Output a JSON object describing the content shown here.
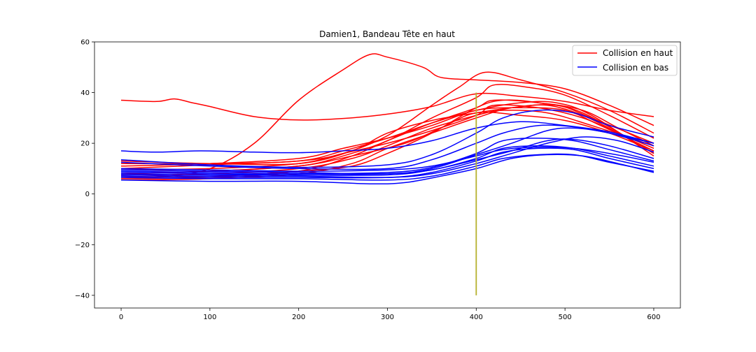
{
  "chart_data": {
    "type": "line",
    "title": "Damien1, Bandeau Tête en haut",
    "xlabel": "",
    "ylabel": "",
    "xlim": [
      -30,
      630
    ],
    "ylim": [
      -45,
      60
    ],
    "x_ticks": [
      0,
      100,
      200,
      300,
      400,
      500,
      600
    ],
    "y_ticks": [
      -40,
      -20,
      0,
      20,
      40,
      60
    ],
    "legend_position": "top-right",
    "grid": false,
    "colors": {
      "red": "#ff0000",
      "blue": "#0000ff",
      "marker": "#b5b02d"
    },
    "legend": [
      {
        "label": "Collision en haut",
        "color": "#ff0000"
      },
      {
        "label": "Collision en bas",
        "color": "#0000ff"
      }
    ],
    "vertical_marker": {
      "x": 400,
      "y_from": -40,
      "y_to": 40,
      "color": "#b5b02d"
    },
    "series": [
      {
        "group": "haut",
        "color": "#ff0000",
        "points": [
          [
            0,
            37
          ],
          [
            40,
            36.5
          ],
          [
            60,
            37.5
          ],
          [
            80,
            36
          ],
          [
            100,
            34.5
          ],
          [
            150,
            30.5
          ],
          [
            200,
            29.2
          ],
          [
            250,
            29.8
          ],
          [
            300,
            31.5
          ],
          [
            350,
            34.5
          ],
          [
            400,
            39.5
          ],
          [
            450,
            38.5
          ],
          [
            500,
            36.5
          ],
          [
            550,
            33
          ],
          [
            600,
            30.5
          ]
        ]
      },
      {
        "group": "haut",
        "color": "#ff0000",
        "points": [
          [
            0,
            7
          ],
          [
            50,
            7
          ],
          [
            100,
            10
          ],
          [
            150,
            20
          ],
          [
            200,
            37
          ],
          [
            250,
            49
          ],
          [
            280,
            55
          ],
          [
            300,
            54
          ],
          [
            340,
            50
          ],
          [
            360,
            46
          ],
          [
            400,
            45
          ],
          [
            450,
            44
          ],
          [
            500,
            41.5
          ],
          [
            550,
            35
          ],
          [
            600,
            27
          ]
        ]
      },
      {
        "group": "haut",
        "color": "#ff0000",
        "points": [
          [
            0,
            10
          ],
          [
            100,
            11.5
          ],
          [
            200,
            13
          ],
          [
            250,
            16
          ],
          [
            300,
            23
          ],
          [
            350,
            35
          ],
          [
            380,
            42
          ],
          [
            410,
            48
          ],
          [
            450,
            45
          ],
          [
            500,
            40
          ],
          [
            550,
            33
          ],
          [
            600,
            24
          ]
        ]
      },
      {
        "group": "haut",
        "color": "#ff0000",
        "points": [
          [
            0,
            8
          ],
          [
            100,
            9
          ],
          [
            200,
            11
          ],
          [
            250,
            15
          ],
          [
            300,
            21
          ],
          [
            350,
            30
          ],
          [
            400,
            38
          ],
          [
            420,
            43
          ],
          [
            460,
            42
          ],
          [
            500,
            39
          ],
          [
            550,
            31
          ],
          [
            600,
            22
          ]
        ]
      },
      {
        "group": "haut",
        "color": "#ff0000",
        "points": [
          [
            0,
            6
          ],
          [
            100,
            6.5
          ],
          [
            200,
            9
          ],
          [
            260,
            15
          ],
          [
            300,
            21
          ],
          [
            350,
            28
          ],
          [
            400,
            34
          ],
          [
            420,
            37
          ],
          [
            470,
            36
          ],
          [
            520,
            33
          ],
          [
            560,
            26
          ],
          [
            600,
            19
          ]
        ]
      },
      {
        "group": "haut",
        "color": "#ff0000",
        "points": [
          [
            0,
            13
          ],
          [
            100,
            12
          ],
          [
            200,
            12
          ],
          [
            260,
            17
          ],
          [
            300,
            24
          ],
          [
            350,
            29
          ],
          [
            400,
            32
          ],
          [
            440,
            34
          ],
          [
            480,
            35
          ],
          [
            520,
            31
          ],
          [
            560,
            24
          ],
          [
            600,
            16
          ]
        ]
      },
      {
        "group": "haut",
        "color": "#ff0000",
        "points": [
          [
            0,
            11
          ],
          [
            100,
            12
          ],
          [
            200,
            14
          ],
          [
            250,
            18
          ],
          [
            300,
            22
          ],
          [
            350,
            27
          ],
          [
            400,
            33
          ],
          [
            450,
            34
          ],
          [
            500,
            33
          ],
          [
            540,
            27
          ],
          [
            600,
            17
          ]
        ]
      },
      {
        "group": "haut",
        "color": "#ff0000",
        "points": [
          [
            0,
            9.5
          ],
          [
            100,
            10
          ],
          [
            200,
            12
          ],
          [
            250,
            16
          ],
          [
            300,
            20
          ],
          [
            350,
            25
          ],
          [
            400,
            31
          ],
          [
            420,
            35
          ],
          [
            470,
            34
          ],
          [
            520,
            30
          ],
          [
            560,
            24
          ],
          [
            600,
            18
          ]
        ]
      },
      {
        "group": "haut",
        "color": "#ff0000",
        "points": [
          [
            0,
            7.5
          ],
          [
            100,
            8
          ],
          [
            200,
            10
          ],
          [
            260,
            14
          ],
          [
            300,
            19
          ],
          [
            350,
            26
          ],
          [
            400,
            31
          ],
          [
            430,
            33
          ],
          [
            480,
            32
          ],
          [
            530,
            27
          ],
          [
            600,
            19
          ]
        ]
      },
      {
        "group": "haut",
        "color": "#ff0000",
        "points": [
          [
            0,
            5.5
          ],
          [
            100,
            6
          ],
          [
            200,
            8
          ],
          [
            260,
            12
          ],
          [
            300,
            18
          ],
          [
            350,
            24
          ],
          [
            400,
            30
          ],
          [
            440,
            34
          ],
          [
            490,
            35
          ],
          [
            530,
            30
          ],
          [
            600,
            20
          ]
        ]
      },
      {
        "group": "haut",
        "color": "#ff0000",
        "points": [
          [
            0,
            12
          ],
          [
            100,
            12
          ],
          [
            200,
            13
          ],
          [
            250,
            17
          ],
          [
            300,
            22
          ],
          [
            350,
            28
          ],
          [
            400,
            33
          ],
          [
            450,
            36
          ],
          [
            490,
            36
          ],
          [
            530,
            31
          ],
          [
            600,
            15
          ]
        ]
      },
      {
        "group": "haut",
        "color": "#ff0000",
        "points": [
          [
            0,
            8
          ],
          [
            100,
            9
          ],
          [
            200,
            11
          ],
          [
            260,
            15
          ],
          [
            320,
            20
          ],
          [
            360,
            26
          ],
          [
            400,
            32
          ],
          [
            450,
            31
          ],
          [
            500,
            29
          ],
          [
            550,
            24
          ],
          [
            600,
            17
          ]
        ]
      },
      {
        "group": "haut",
        "color": "#ff0000",
        "points": [
          [
            0,
            6.5
          ],
          [
            100,
            7
          ],
          [
            200,
            9
          ],
          [
            260,
            11
          ],
          [
            300,
            16
          ],
          [
            350,
            24
          ],
          [
            400,
            34
          ],
          [
            430,
            37
          ],
          [
            470,
            36
          ],
          [
            520,
            32
          ],
          [
            600,
            16
          ]
        ]
      },
      {
        "group": "bas",
        "color": "#0000ff",
        "points": [
          [
            0,
            17
          ],
          [
            40,
            16.5
          ],
          [
            90,
            17
          ],
          [
            150,
            16.5
          ],
          [
            200,
            16.3
          ],
          [
            250,
            17
          ],
          [
            300,
            18
          ],
          [
            350,
            21
          ],
          [
            400,
            26
          ],
          [
            450,
            28.5
          ],
          [
            500,
            27
          ],
          [
            550,
            24.5
          ],
          [
            600,
            20
          ]
        ]
      },
      {
        "group": "bas",
        "color": "#0000ff",
        "points": [
          [
            0,
            13.5
          ],
          [
            100,
            11.5
          ],
          [
            200,
            10.5
          ],
          [
            300,
            11.5
          ],
          [
            350,
            15.5
          ],
          [
            400,
            24
          ],
          [
            430,
            30
          ],
          [
            470,
            33
          ],
          [
            510,
            32
          ],
          [
            550,
            27
          ],
          [
            600,
            22.5
          ]
        ]
      },
      {
        "group": "bas",
        "color": "#0000ff",
        "points": [
          [
            0,
            12.5
          ],
          [
            100,
            11
          ],
          [
            200,
            10
          ],
          [
            300,
            10
          ],
          [
            350,
            13.5
          ],
          [
            400,
            20
          ],
          [
            430,
            24
          ],
          [
            470,
            27
          ],
          [
            510,
            26.5
          ],
          [
            550,
            24
          ],
          [
            600,
            20
          ]
        ]
      },
      {
        "group": "bas",
        "color": "#0000ff",
        "points": [
          [
            0,
            9
          ],
          [
            100,
            8.5
          ],
          [
            200,
            8
          ],
          [
            300,
            8.5
          ],
          [
            350,
            10.5
          ],
          [
            400,
            16
          ],
          [
            430,
            21
          ],
          [
            470,
            22
          ],
          [
            510,
            21
          ],
          [
            550,
            17.5
          ],
          [
            600,
            13
          ]
        ]
      },
      {
        "group": "bas",
        "color": "#0000ff",
        "points": [
          [
            0,
            8
          ],
          [
            100,
            7.5
          ],
          [
            200,
            7.5
          ],
          [
            300,
            8
          ],
          [
            350,
            9.5
          ],
          [
            400,
            14
          ],
          [
            430,
            18
          ],
          [
            470,
            19
          ],
          [
            510,
            18
          ],
          [
            550,
            15
          ],
          [
            600,
            11
          ]
        ]
      },
      {
        "group": "bas",
        "color": "#0000ff",
        "points": [
          [
            0,
            7
          ],
          [
            100,
            6.5
          ],
          [
            200,
            6.5
          ],
          [
            300,
            6.5
          ],
          [
            350,
            8.5
          ],
          [
            400,
            13
          ],
          [
            430,
            16.5
          ],
          [
            470,
            18
          ],
          [
            510,
            17.5
          ],
          [
            550,
            14
          ],
          [
            600,
            10
          ]
        ]
      },
      {
        "group": "bas",
        "color": "#0000ff",
        "points": [
          [
            0,
            6.5
          ],
          [
            100,
            6
          ],
          [
            200,
            6
          ],
          [
            300,
            5.5
          ],
          [
            350,
            7
          ],
          [
            400,
            11
          ],
          [
            430,
            14
          ],
          [
            470,
            15.5
          ],
          [
            510,
            15.5
          ],
          [
            550,
            12.5
          ],
          [
            600,
            9
          ]
        ]
      },
      {
        "group": "bas",
        "color": "#0000ff",
        "points": [
          [
            0,
            5.5
          ],
          [
            100,
            5
          ],
          [
            200,
            5
          ],
          [
            280,
            4
          ],
          [
            320,
            4.5
          ],
          [
            360,
            7
          ],
          [
            400,
            10
          ],
          [
            440,
            14
          ],
          [
            480,
            15.5
          ],
          [
            520,
            15
          ],
          [
            560,
            12
          ],
          [
            600,
            8.5
          ]
        ]
      },
      {
        "group": "bas",
        "color": "#0000ff",
        "points": [
          [
            0,
            10
          ],
          [
            100,
            9.5
          ],
          [
            200,
            9
          ],
          [
            300,
            9.5
          ],
          [
            350,
            11
          ],
          [
            400,
            15
          ],
          [
            430,
            17.5
          ],
          [
            470,
            18.5
          ],
          [
            510,
            18
          ],
          [
            550,
            16
          ],
          [
            600,
            12.5
          ]
        ]
      },
      {
        "group": "bas",
        "color": "#0000ff",
        "points": [
          [
            0,
            7.5
          ],
          [
            100,
            7
          ],
          [
            200,
            7
          ],
          [
            300,
            6.5
          ],
          [
            350,
            8
          ],
          [
            400,
            12
          ],
          [
            440,
            16
          ],
          [
            480,
            20
          ],
          [
            520,
            22.5
          ],
          [
            560,
            21
          ],
          [
            600,
            16.5
          ]
        ]
      },
      {
        "group": "bas",
        "color": "#0000ff",
        "points": [
          [
            0,
            8.5
          ],
          [
            100,
            8
          ],
          [
            200,
            7.5
          ],
          [
            300,
            7.5
          ],
          [
            350,
            9.5
          ],
          [
            400,
            13.5
          ],
          [
            440,
            17
          ],
          [
            480,
            21
          ],
          [
            510,
            21.5
          ],
          [
            550,
            19
          ],
          [
            600,
            14
          ]
        ]
      },
      {
        "group": "bas",
        "color": "#0000ff",
        "points": [
          [
            0,
            9.5
          ],
          [
            100,
            9
          ],
          [
            200,
            8.5
          ],
          [
            300,
            8
          ],
          [
            350,
            10
          ],
          [
            400,
            15.5
          ],
          [
            440,
            20
          ],
          [
            480,
            25
          ],
          [
            510,
            26
          ],
          [
            550,
            24
          ],
          [
            600,
            19
          ]
        ]
      }
    ]
  }
}
